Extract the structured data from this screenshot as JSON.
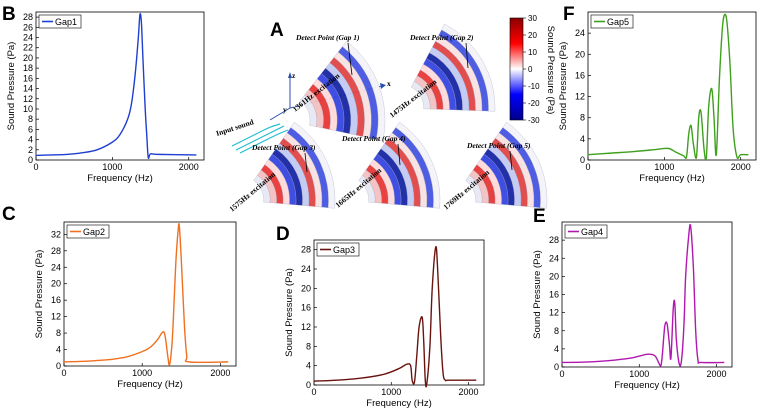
{
  "figure": {
    "panel_A": {
      "letter": "A",
      "input_label": "Input sound",
      "detect_labels": [
        "Detect Point (Gap 1)",
        "Detect Point (Gap 2)",
        "Detect Point (Gap 3)",
        "Detect Point (Gap 4)",
        "Detect Point (Gap 5)"
      ],
      "excitation_labels": [
        "1361Hz excitation",
        "1475Hz excitation",
        "1575Hz excitation",
        "1665Hz excitation",
        "1769Hz excitation"
      ],
      "axis_labels": {
        "x": "x",
        "y": "y",
        "z": "z"
      },
      "colorbar": {
        "label": "Sound Pressure (Pa)",
        "min": -30,
        "max": 30,
        "ticks": [
          "30",
          "20",
          "10",
          "0",
          "-10",
          "-20",
          "-30"
        ],
        "colors": [
          "#8b0000",
          "#ff0000",
          "#ffffff",
          "#0000ff",
          "#00008b"
        ]
      }
    }
  },
  "chart_data": [
    {
      "panel": "B",
      "type": "line",
      "series": [
        {
          "name": "Gap1",
          "color": "#1f3fd0",
          "x": [
            0,
            200,
            400,
            600,
            800,
            1000,
            1100,
            1200,
            1250,
            1300,
            1340,
            1361,
            1380,
            1400,
            1430,
            1450,
            1470,
            1500,
            1600,
            2100
          ],
          "y": [
            0.9,
            1.0,
            1.1,
            1.4,
            2.0,
            3.5,
            5.0,
            8.0,
            11.0,
            17.0,
            24.0,
            28.5,
            27.0,
            20.0,
            10.0,
            5.0,
            0.5,
            1.2,
            1.1,
            1.0
          ]
        }
      ],
      "xlabel": "Frequency (Hz)",
      "ylabel": "Sound Pressure (Pa)",
      "xlim": [
        0,
        2200
      ],
      "ylim": [
        0,
        29
      ],
      "xticks": [
        0,
        1000,
        2000
      ],
      "yticks": [
        0,
        2,
        4,
        6,
        8,
        10,
        12,
        14,
        16,
        18,
        20,
        22,
        24,
        26,
        28
      ],
      "legend": "top-left"
    },
    {
      "panel": "C",
      "type": "line",
      "series": [
        {
          "name": "Gap2",
          "color": "#f07020",
          "x": [
            0,
            200,
            400,
            600,
            800,
            1000,
            1100,
            1200,
            1250,
            1280,
            1300,
            1330,
            1350,
            1380,
            1400,
            1430,
            1460,
            1475,
            1500,
            1540,
            1570,
            1600,
            2100
          ],
          "y": [
            1.0,
            1.1,
            1.3,
            1.6,
            2.2,
            3.5,
            4.5,
            6.5,
            8.0,
            8.2,
            6.5,
            2.0,
            0.3,
            5.0,
            12.0,
            25.0,
            33.0,
            34.0,
            26.0,
            10.0,
            2.5,
            1.0,
            1.0
          ]
        }
      ],
      "xlabel": "Frequency (Hz)",
      "ylabel": "Sound Pressure (Pa)",
      "xlim": [
        0,
        2200
      ],
      "ylim": [
        0,
        35
      ],
      "xticks": [
        0,
        1000,
        2000
      ],
      "yticks": [
        0,
        4,
        8,
        12,
        16,
        20,
        24,
        28,
        32
      ],
      "legend": "top-left"
    },
    {
      "panel": "D",
      "type": "line",
      "series": [
        {
          "name": "Gap3",
          "color": "#6a1410",
          "x": [
            0,
            300,
            600,
            900,
            1100,
            1200,
            1250,
            1270,
            1300,
            1330,
            1360,
            1400,
            1420,
            1440,
            1460,
            1500,
            1530,
            1575,
            1600,
            1640,
            1670,
            1700,
            1750,
            2100
          ],
          "y": [
            0.8,
            1.0,
            1.4,
            2.2,
            3.4,
            4.3,
            4.0,
            1.0,
            0.6,
            6.0,
            12.0,
            14.0,
            9.0,
            1.0,
            0.3,
            8.0,
            20.0,
            28.5,
            24.0,
            10.0,
            2.5,
            1.0,
            1.0,
            1.0
          ]
        }
      ],
      "xlabel": "Frequency (Hz)",
      "ylabel": "Sound Pressure (Pa)",
      "xlim": [
        0,
        2200
      ],
      "ylim": [
        0,
        30
      ],
      "xticks": [
        0,
        1000,
        2000
      ],
      "yticks": [
        0,
        4,
        8,
        12,
        16,
        20,
        24,
        28
      ],
      "legend": "top-left"
    },
    {
      "panel": "E",
      "type": "line",
      "series": [
        {
          "name": "Gap4",
          "color": "#b018b0",
          "x": [
            0,
            300,
            600,
            900,
            1100,
            1200,
            1250,
            1280,
            1300,
            1330,
            1360,
            1390,
            1410,
            1440,
            1460,
            1480,
            1520,
            1550,
            1580,
            1600,
            1640,
            1665,
            1700,
            1730,
            1760,
            1800,
            2100
          ],
          "y": [
            1.0,
            1.1,
            1.4,
            2.0,
            2.8,
            2.5,
            1.0,
            0.3,
            3.0,
            9.0,
            9.5,
            5.0,
            2.0,
            13.0,
            14.0,
            6.0,
            0.5,
            2.0,
            10.0,
            20.0,
            29.0,
            31.0,
            22.0,
            8.0,
            1.5,
            1.0,
            1.0
          ]
        }
      ],
      "xlabel": "Frequency (Hz)",
      "ylabel": "Sound Pressure (Pa)",
      "xlim": [
        0,
        2200
      ],
      "ylim": [
        0,
        32
      ],
      "xticks": [
        0,
        1000,
        2000
      ],
      "yticks": [
        0,
        4,
        8,
        12,
        16,
        20,
        24,
        28
      ],
      "legend": "top-left"
    },
    {
      "panel": "F",
      "type": "line",
      "series": [
        {
          "name": "Gap5",
          "color": "#3ea01e",
          "x": [
            0,
            300,
            600,
            900,
            1050,
            1150,
            1250,
            1290,
            1320,
            1350,
            1380,
            1420,
            1450,
            1480,
            1520,
            1550,
            1580,
            1620,
            1650,
            1680,
            1720,
            1760,
            1790,
            1820,
            1860,
            1900,
            1950,
            2000,
            2100
          ],
          "y": [
            1.0,
            1.3,
            1.6,
            2.0,
            2.2,
            1.5,
            0.8,
            0.6,
            5.0,
            6.5,
            3.0,
            0.5,
            8.0,
            9.0,
            2.0,
            0.5,
            10.0,
            13.5,
            8.0,
            1.0,
            15.0,
            25.0,
            27.5,
            26.0,
            18.0,
            6.0,
            0.6,
            1.0,
            1.0
          ]
        }
      ],
      "xlabel": "Frequency (Hz)",
      "ylabel": "Sound Pressure (Pa)",
      "xlim": [
        0,
        2200
      ],
      "ylim": [
        0,
        28
      ],
      "xticks": [
        0,
        1000,
        2000
      ],
      "yticks": [
        0,
        4,
        8,
        12,
        16,
        20,
        24
      ],
      "legend": "top-left"
    }
  ]
}
